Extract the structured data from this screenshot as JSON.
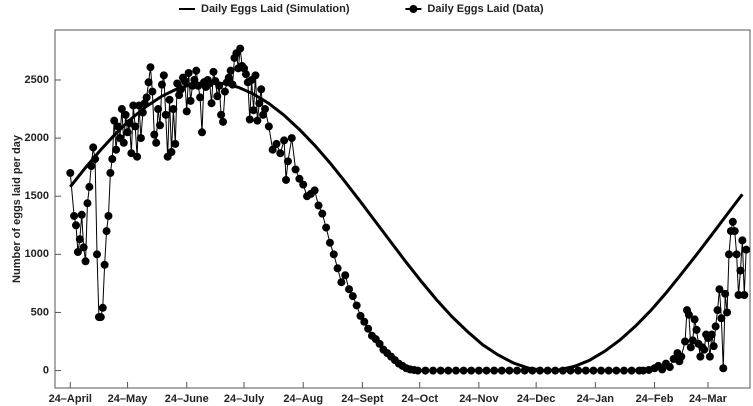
{
  "chart_data": {
    "type": "line",
    "y_label": "Number of eggs laid per day",
    "xlim": [
      -8,
      356
    ],
    "ylim": [
      -150,
      2930
    ],
    "xticks": [
      {
        "value": 0,
        "label": "24–April"
      },
      {
        "value": 30,
        "label": "24–May"
      },
      {
        "value": 61,
        "label": "24–June"
      },
      {
        "value": 91,
        "label": "24–July"
      },
      {
        "value": 122,
        "label": "24–Aug"
      },
      {
        "value": 153,
        "label": "24–Sept"
      },
      {
        "value": 183,
        "label": "24–Oct"
      },
      {
        "value": 214,
        "label": "24–Nov"
      },
      {
        "value": 244,
        "label": "24–Dec"
      },
      {
        "value": 275,
        "label": "24–Jan"
      },
      {
        "value": 306,
        "label": "24–Feb"
      },
      {
        "value": 334,
        "label": "24–Mar"
      }
    ],
    "yticks": [
      0,
      500,
      1000,
      1500,
      2000,
      2500
    ],
    "grid": false,
    "legend": "top",
    "series": [
      {
        "name": "Daily Eggs Laid (Simulation)",
        "color": "#000000",
        "markers": false,
        "x": [
          0,
          8,
          16,
          24,
          32,
          40,
          48,
          56,
          64,
          72,
          80,
          88,
          96,
          104,
          112,
          120,
          128,
          136,
          144,
          152,
          160,
          168,
          176,
          184,
          192,
          200,
          208,
          216,
          224,
          232,
          240,
          248,
          256,
          264,
          272,
          280,
          288,
          296,
          304,
          312,
          320,
          328,
          336,
          344,
          352
        ],
        "values": [
          1581,
          1746,
          1900,
          2042,
          2168,
          2274,
          2361,
          2424,
          2464,
          2480,
          2470,
          2437,
          2379,
          2298,
          2196,
          2074,
          1938,
          1787,
          1623,
          1453,
          1278,
          1104,
          930,
          764,
          606,
          462,
          336,
          222,
          135,
          66,
          21,
          1,
          6,
          36,
          89,
          167,
          264,
          382,
          516,
          667,
          830,
          997,
          1169,
          1344,
          1517
        ]
      },
      {
        "name": "Daily Eggs Laid (Data)",
        "color": "#000000",
        "markers": true,
        "x": [
          0,
          2,
          3,
          4,
          5,
          6,
          7,
          8,
          9,
          10,
          11,
          12,
          13,
          14,
          15,
          16,
          17,
          18,
          19,
          20,
          21,
          22,
          23,
          24,
          25,
          26,
          27,
          28,
          29,
          30,
          31,
          32,
          33,
          34,
          35,
          36,
          37,
          38,
          39,
          40,
          41,
          42,
          43,
          44,
          45,
          46,
          47,
          48,
          49,
          50,
          51,
          52,
          53,
          54,
          55,
          56,
          57,
          58,
          59,
          60,
          61,
          62,
          63,
          64,
          65,
          66,
          67,
          68,
          69,
          70,
          71,
          72,
          73,
          74,
          75,
          76,
          77,
          78,
          79,
          80,
          81,
          82,
          83,
          84,
          85,
          86,
          87,
          88,
          89,
          90,
          91,
          92,
          93,
          94,
          95,
          96,
          97,
          98,
          99,
          100,
          101,
          102,
          104,
          106,
          108,
          110,
          112,
          113,
          114,
          116,
          118,
          120,
          122,
          124,
          126,
          128,
          130,
          132,
          134,
          136,
          138,
          140,
          142,
          144,
          146,
          148,
          150,
          152,
          154,
          156,
          158,
          160,
          162,
          164,
          166,
          168,
          170,
          172,
          174,
          176,
          178,
          180,
          182,
          186,
          190,
          194,
          198,
          202,
          206,
          210,
          214,
          218,
          222,
          226,
          230,
          234,
          238,
          242,
          246,
          250,
          254,
          258,
          262,
          266,
          270,
          274,
          278,
          282,
          286,
          290,
          294,
          298,
          300,
          303,
          306,
          308,
          310,
          312,
          314,
          316,
          318,
          319,
          320,
          322,
          323,
          324,
          325,
          326,
          327,
          328,
          329,
          330,
          331,
          332,
          333,
          334,
          335,
          336,
          337,
          338,
          339,
          340,
          341,
          342,
          343,
          344,
          345,
          346,
          347,
          348,
          349,
          350,
          351,
          352,
          353,
          354
        ],
        "values": [
          1700,
          1330,
          1250,
          1020,
          1130,
          1340,
          1060,
          940,
          1440,
          1580,
          1760,
          1920,
          1820,
          1000,
          460,
          460,
          540,
          910,
          1200,
          1330,
          1700,
          1820,
          2150,
          1900,
          2100,
          2000,
          2250,
          1960,
          2200,
          2050,
          2130,
          1870,
          2280,
          2100,
          1840,
          2280,
          2000,
          2220,
          2300,
          2350,
          2480,
          2610,
          2400,
          2030,
          1960,
          2250,
          2110,
          2460,
          2540,
          2200,
          1840,
          2330,
          1880,
          2250,
          1950,
          2470,
          2370,
          2420,
          2520,
          2490,
          2230,
          2560,
          2320,
          2450,
          2500,
          2580,
          2450,
          2350,
          2050,
          2480,
          2440,
          2500,
          2470,
          2300,
          2570,
          2490,
          2360,
          2450,
          2200,
          2140,
          2400,
          2480,
          2520,
          2580,
          2460,
          2690,
          2730,
          2600,
          2770,
          2620,
          2600,
          2550,
          2480,
          2160,
          2500,
          2240,
          2540,
          2150,
          2300,
          2420,
          2200,
          2250,
          2100,
          1900,
          1950,
          1870,
          1980,
          1640,
          1800,
          2000,
          1730,
          1650,
          1600,
          1500,
          1520,
          1550,
          1420,
          1350,
          1230,
          1100,
          1000,
          880,
          760,
          820,
          700,
          640,
          560,
          470,
          420,
          360,
          300,
          270,
          230,
          180,
          150,
          120,
          90,
          60,
          40,
          20,
          10,
          5,
          0,
          0,
          0,
          0,
          0,
          0,
          0,
          0,
          0,
          0,
          0,
          0,
          0,
          0,
          0,
          0,
          0,
          0,
          0,
          0,
          0,
          0,
          0,
          0,
          0,
          0,
          0,
          0,
          0,
          0,
          0,
          5,
          20,
          40,
          10,
          60,
          30,
          100,
          150,
          80,
          120,
          250,
          520,
          480,
          200,
          260,
          440,
          350,
          230,
          120,
          200,
          180,
          310,
          280,
          120,
          310,
          210,
          380,
          520,
          700,
          450,
          20,
          660,
          500,
          1000,
          1200,
          1280,
          1200,
          1000,
          650,
          860,
          1120,
          650,
          1040
        ]
      }
    ]
  }
}
